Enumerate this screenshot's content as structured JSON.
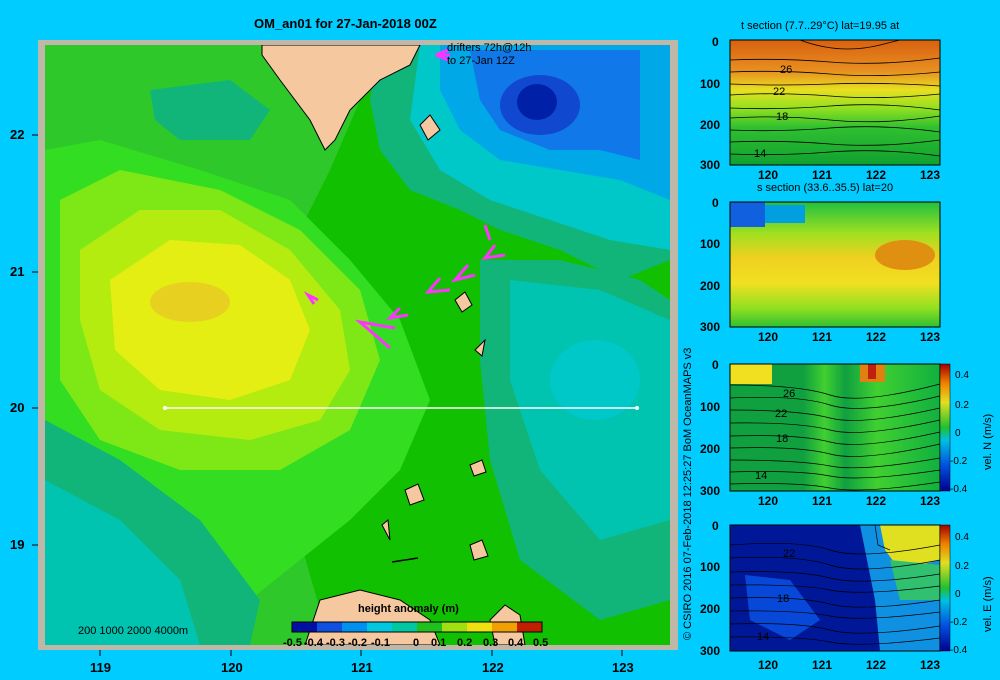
{
  "main_map": {
    "title": "OM_an01 for 27-Jan-2018 00Z",
    "drifter_note_line1": "drifters 72h@12h",
    "drifter_note_line2": "to 27-Jan 12Z",
    "depth_legend": "200  1000  2000  4000m",
    "x_ticks": [
      "119",
      "120",
      "121",
      "122",
      "123"
    ],
    "y_ticks": [
      "22",
      "21",
      "20",
      "19"
    ],
    "colorbar_title": "height anomaly  (m)",
    "colorbar_ticks": [
      "-0.5",
      "-0.4",
      "-0.3",
      "-0.2",
      "-0.1",
      "0",
      "0.1",
      "0.2",
      "0.3",
      "0.4",
      "0.5"
    ],
    "section_line_lat": "20"
  },
  "side_credit": "© CSIRO 2016   07-Feb-2018 12:25:27 BoM OceanMAPS v3",
  "panels": [
    {
      "title": "t section (7.7..29°C) lat=19.95 at",
      "y_ticks": [
        "0",
        "100",
        "200",
        "300"
      ],
      "x_ticks": [
        "120",
        "121",
        "122",
        "123"
      ],
      "contour_labels": [
        "26",
        "22",
        "18",
        "14"
      ]
    },
    {
      "title": "s section (33.6..35.5) lat=20",
      "y_ticks": [
        "0",
        "100",
        "200",
        "300"
      ],
      "x_ticks": [
        "120",
        "121",
        "122",
        "123"
      ]
    },
    {
      "colorbar_label": "vel. N (m/s)",
      "y_ticks": [
        "0",
        "100",
        "200",
        "300"
      ],
      "x_ticks": [
        "120",
        "121",
        "122",
        "123"
      ],
      "contour_labels": [
        "26",
        "22",
        "18",
        "14"
      ],
      "colorbar_ticks": [
        "0.4",
        "0.2",
        "0",
        "-0.2",
        "-0.4"
      ]
    },
    {
      "colorbar_label": "vel. E (m/s)",
      "y_ticks": [
        "0",
        "100",
        "200",
        "300"
      ],
      "x_ticks": [
        "120",
        "121",
        "122",
        "123"
      ],
      "contour_labels": [
        "22",
        "18",
        "14"
      ],
      "colorbar_ticks": [
        "0.4",
        "0.2",
        "0",
        "-0.2",
        "-0.4"
      ]
    }
  ],
  "colors": {
    "background": "#00ccff",
    "land": "#f5c8a0",
    "frame": "#bfb8a8",
    "drifter": "#ff33ff"
  }
}
